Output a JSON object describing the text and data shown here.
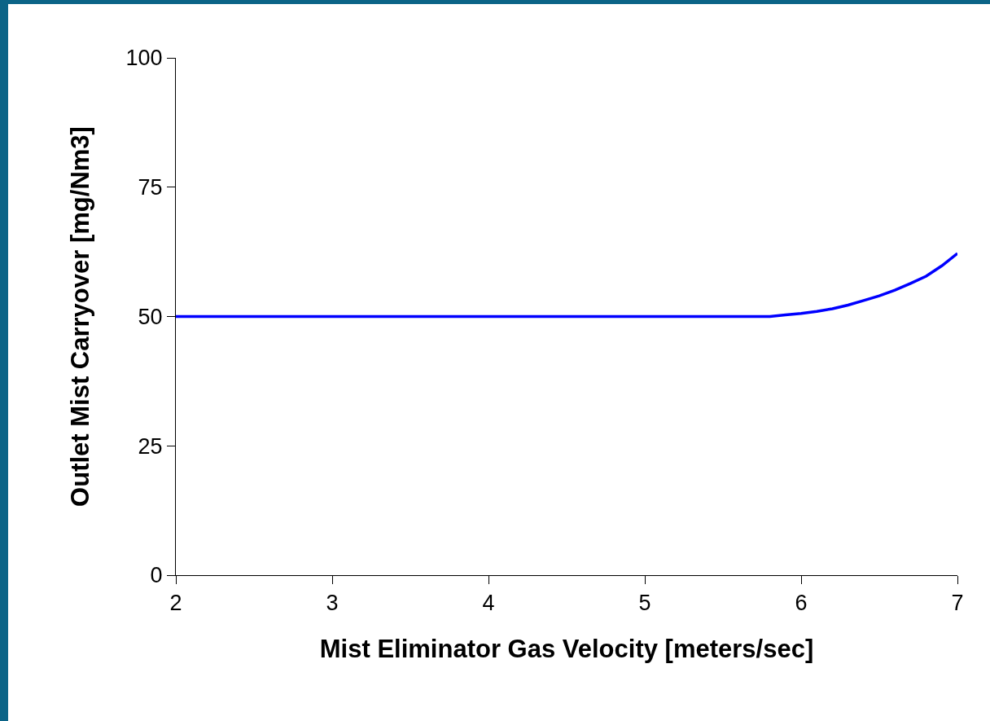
{
  "chart_data": {
    "type": "line",
    "xlabel": "Mist Eliminator Gas Velocity [meters/sec]",
    "ylabel": "Outlet Mist Carryover [mg/Nm3]",
    "x": [
      2,
      3,
      4,
      5,
      5.8,
      5.9,
      6,
      6.1,
      6.2,
      6.3,
      6.4,
      6.5,
      6.6,
      6.7,
      6.8,
      6.9,
      7
    ],
    "series": [
      {
        "color": "#0000ff",
        "values": [
          50,
          50,
          50,
          50,
          50,
          50.3,
          50.6,
          51,
          51.5,
          52.2,
          53.1,
          54,
          55.1,
          56.4,
          57.8,
          59.8,
          62.2
        ]
      }
    ],
    "xlim": [
      2,
      7
    ],
    "xticks": [
      2,
      3,
      4,
      5,
      6,
      7
    ],
    "ylim": [
      0,
      100
    ],
    "yticks": [
      0,
      25,
      50,
      75,
      100
    ],
    "grid": false,
    "marker": "none",
    "line_style": "solid"
  }
}
